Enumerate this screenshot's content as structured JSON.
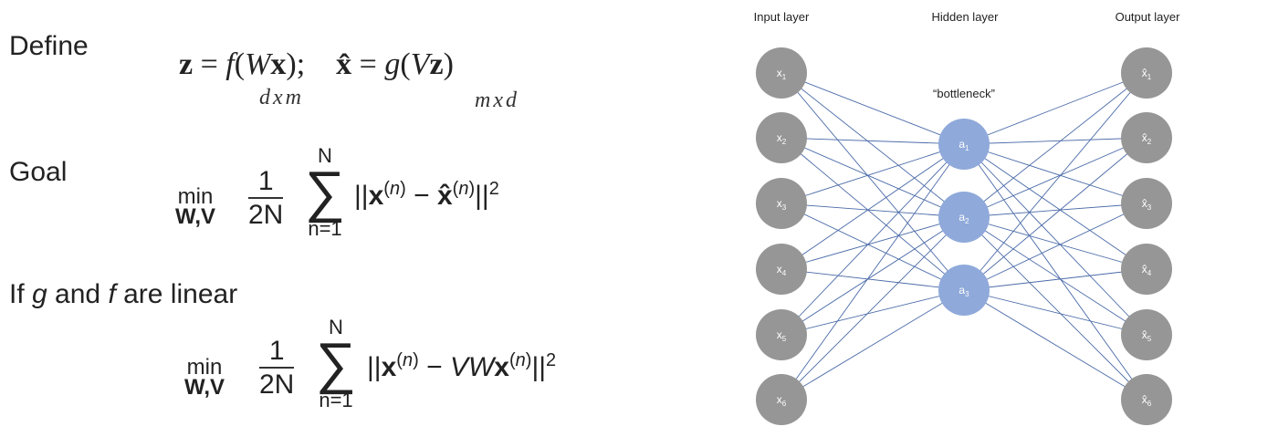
{
  "left": {
    "define_label": "Define",
    "goal_label": "Goal",
    "if_label_prefix": "If ",
    "if_label_g": "g",
    "if_label_and": " and ",
    "if_label_f": "f",
    "if_label_suffix": " are linear",
    "define_eq1": "z = f(Wx);",
    "define_eq2": "x̂ = g(Vz)",
    "define_sub1": "dxm",
    "define_sub2": "mxd",
    "min_top": "min",
    "min_sub": "W,V",
    "frac_num": "1",
    "frac_den": "2N",
    "sum_upper": "N",
    "sum_sigma": "∑",
    "sum_lower": "n=1",
    "goal_norm": "||x(n) − x̂(n)||2",
    "linear_norm": "||x(n) − VWx(n)||2"
  },
  "diagram": {
    "input_layer_label": "Input layer",
    "hidden_layer_label": "Hidden layer",
    "output_layer_label": "Output layer",
    "bottleneck_label": "“bottleneck”",
    "input_nodes": [
      "x1",
      "x2",
      "x3",
      "x4",
      "x5",
      "x6"
    ],
    "hidden_nodes": [
      "a1",
      "a2",
      "a3"
    ],
    "output_nodes": [
      "x̂1",
      "x̂2",
      "x̂3",
      "x̂4",
      "x̂5",
      "x̂6"
    ],
    "colors": {
      "outer_node": "#969696",
      "hidden_node": "#8fa9da",
      "edge": "#4a6aa8",
      "node_text": "#ffffff"
    }
  }
}
